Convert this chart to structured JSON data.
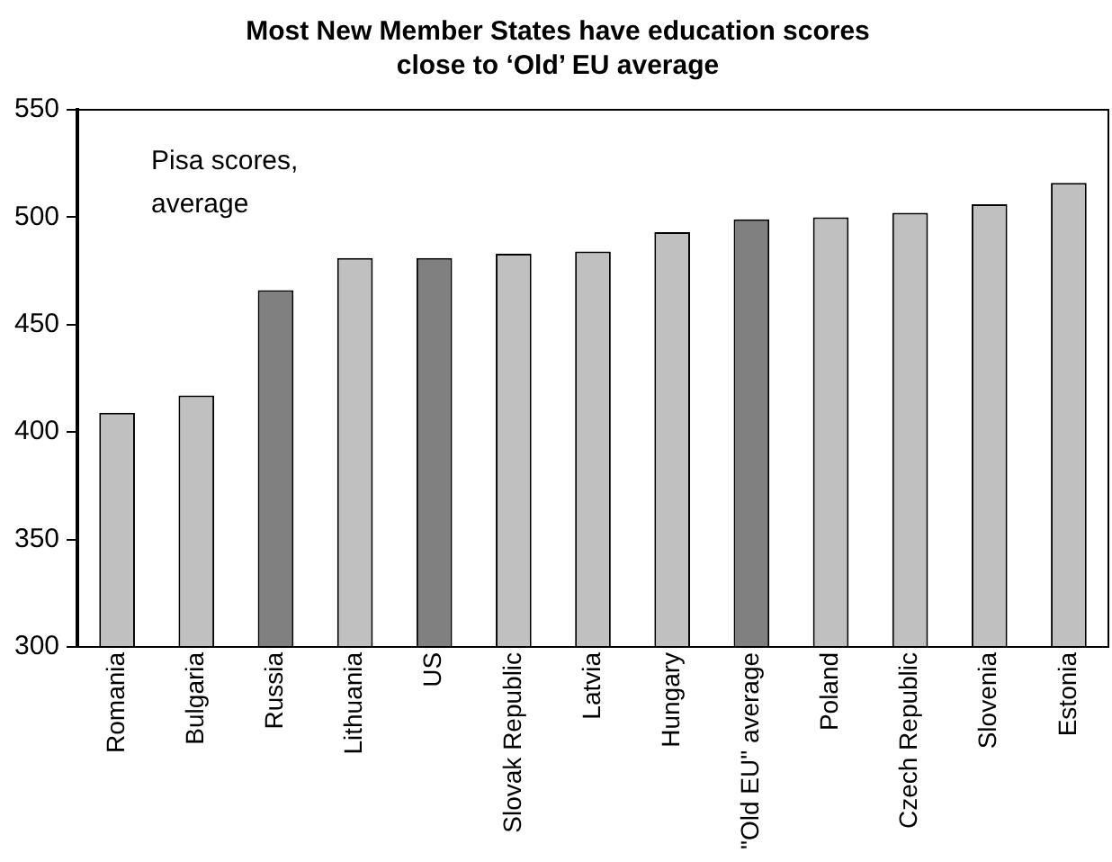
{
  "chart_data": {
    "type": "bar",
    "title": "Most New Member States have education scores close to ‘Old’ EU average",
    "categories": [
      "Romania",
      "Bulgaria",
      "Russia",
      "Lithuania",
      "US",
      "Slovak Republic",
      "Latvia",
      "Hungary",
      "\"Old EU\" average",
      "Poland",
      "Czech Republic",
      "Slovenia",
      "Estonia"
    ],
    "values": [
      409,
      417,
      466,
      481,
      481,
      483,
      484,
      493,
      499,
      500,
      502,
      506,
      516
    ],
    "colors": [
      "#c0c0c0",
      "#c0c0c0",
      "#808080",
      "#c0c0c0",
      "#808080",
      "#c0c0c0",
      "#c0c0c0",
      "#c0c0c0",
      "#808080",
      "#c0c0c0",
      "#c0c0c0",
      "#c0c0c0",
      "#c0c0c0"
    ],
    "ylim": [
      300,
      550
    ],
    "yticks": [
      300,
      350,
      400,
      450,
      500,
      550
    ],
    "grid": false,
    "annotations": [
      "Pisa scores, average"
    ]
  }
}
